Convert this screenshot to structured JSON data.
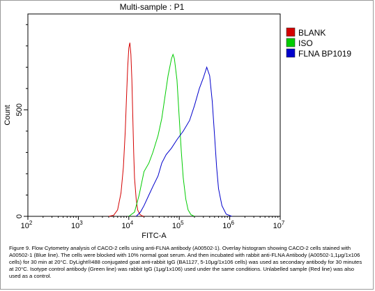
{
  "chart_data": {
    "type": "line",
    "title": "Multi-sample : P1",
    "xlabel": "FITC-A",
    "ylabel": "Count",
    "xscale": "log",
    "xlim": [
      100,
      10000000
    ],
    "ylim": [
      0,
      950
    ],
    "x_ticks": [
      {
        "base": "10",
        "exp": "2"
      },
      {
        "base": "10",
        "exp": "3"
      },
      {
        "base": "10",
        "exp": "4"
      },
      {
        "base": "10",
        "exp": "5"
      },
      {
        "base": "10",
        "exp": "6"
      },
      {
        "base": "10",
        "exp": "7"
      }
    ],
    "x_tick_values": [
      100,
      1000,
      10000,
      100000,
      1000000,
      10000000
    ],
    "y_ticks": [
      "0",
      "500"
    ],
    "y_tick_values": [
      0,
      500
    ],
    "legend_position": "top-right",
    "series": [
      {
        "name": "BLANK",
        "color": "#d40000",
        "x": [
          4000,
          5000,
          6000,
          7000,
          7800,
          8500,
          9000,
          9500,
          10000,
          10500,
          11000,
          11500,
          12000,
          12500,
          13000,
          14000,
          15000,
          16500,
          18000,
          20000
        ],
        "y": [
          0,
          5,
          30,
          110,
          230,
          400,
          560,
          700,
          790,
          815,
          760,
          640,
          470,
          300,
          180,
          80,
          30,
          10,
          3,
          0
        ]
      },
      {
        "name": "ISO",
        "color": "#00cc00",
        "x": [
          10000,
          13000,
          16000,
          20000,
          25000,
          30000,
          38000,
          45000,
          52000,
          60000,
          70000,
          75000,
          80000,
          90000,
          100000,
          110000,
          120000,
          135000,
          150000,
          170000,
          200000
        ],
        "y": [
          0,
          20,
          100,
          210,
          250,
          300,
          380,
          460,
          560,
          660,
          740,
          760,
          740,
          640,
          460,
          300,
          180,
          80,
          30,
          8,
          0
        ]
      },
      {
        "name": "FLNA BP1019",
        "color": "#0000cc",
        "x": [
          14000,
          17000,
          20000,
          25000,
          30000,
          38000,
          45000,
          55000,
          70000,
          90000,
          120000,
          160000,
          200000,
          250000,
          300000,
          350000,
          400000,
          450000,
          500000,
          550000,
          600000,
          700000,
          850000,
          1100000
        ],
        "y": [
          0,
          20,
          50,
          100,
          140,
          190,
          250,
          290,
          320,
          360,
          400,
          450,
          520,
          600,
          650,
          700,
          660,
          540,
          380,
          230,
          130,
          50,
          10,
          0
        ]
      }
    ]
  },
  "caption": "Figure 9. Flow Cytometry analysis of CACO-2 cells using anti-FLNA antibody (A00502-1). Overlay histogram showing CACO-2 cells stained with A00502-1 (Blue line). The cells were blocked with 10% normal goat serum. And then incubated with rabbit anti-FLNA Antibody (A00502-1,1μg/1x106 cells) for 30 min at 20°C. DyLight®488 conjugated goat anti-rabbit IgG (BA1127, 5-10μg/1x106 cells) was used as secondary antibody for 30 minutes at 20°C. Isotype control antibody (Green line) was rabbit IgG (1μg/1x106) used under the same conditions. Unlabelled sample (Red line) was also used as a control."
}
